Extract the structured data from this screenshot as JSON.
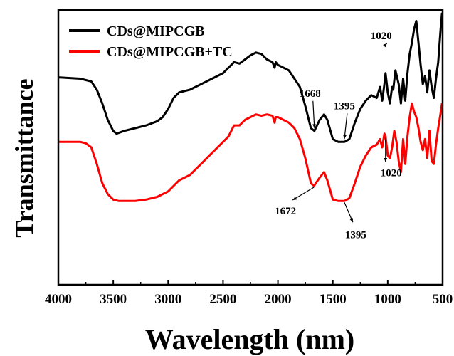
{
  "chart_data": {
    "type": "line",
    "xlabel": "Wavelength (nm)",
    "ylabel": "Transmittance",
    "xlim": [
      4000,
      500
    ],
    "ylim": [
      0,
      100
    ],
    "x_ticks": [
      "4000",
      "3500",
      "3000",
      "2500",
      "2000",
      "1500",
      "1000",
      "500"
    ],
    "x_tick_values": [
      4000,
      3500,
      3000,
      2500,
      2000,
      1500,
      1000,
      500
    ],
    "grid": false,
    "legend_position": "top-left",
    "series": [
      {
        "name": "CDs@MIPCGB",
        "color": "#000000",
        "points": [
          [
            4000,
            75.5
          ],
          [
            3800,
            75
          ],
          [
            3700,
            74
          ],
          [
            3650,
            71
          ],
          [
            3600,
            66
          ],
          [
            3550,
            60
          ],
          [
            3500,
            56
          ],
          [
            3470,
            55
          ],
          [
            3400,
            56
          ],
          [
            3300,
            57
          ],
          [
            3200,
            58
          ],
          [
            3100,
            59.5
          ],
          [
            3050,
            61
          ],
          [
            3000,
            64
          ],
          [
            2950,
            68
          ],
          [
            2900,
            70
          ],
          [
            2800,
            71
          ],
          [
            2700,
            73
          ],
          [
            2600,
            75
          ],
          [
            2500,
            77
          ],
          [
            2450,
            79
          ],
          [
            2400,
            81
          ],
          [
            2350,
            80.5
          ],
          [
            2300,
            82
          ],
          [
            2250,
            83.5
          ],
          [
            2200,
            84.5
          ],
          [
            2150,
            84
          ],
          [
            2100,
            82
          ],
          [
            2050,
            81
          ],
          [
            2030,
            79
          ],
          [
            2020,
            81
          ],
          [
            2000,
            80
          ],
          [
            1900,
            78
          ],
          [
            1800,
            72
          ],
          [
            1750,
            65
          ],
          [
            1700,
            57
          ],
          [
            1668,
            56
          ],
          [
            1620,
            60
          ],
          [
            1580,
            62
          ],
          [
            1550,
            60
          ],
          [
            1500,
            53
          ],
          [
            1450,
            52
          ],
          [
            1395,
            52
          ],
          [
            1350,
            53
          ],
          [
            1300,
            59
          ],
          [
            1250,
            64
          ],
          [
            1200,
            67
          ],
          [
            1150,
            69
          ],
          [
            1100,
            68
          ],
          [
            1070,
            72
          ],
          [
            1050,
            67
          ],
          [
            1030,
            73
          ],
          [
            1020,
            77
          ],
          [
            1000,
            70
          ],
          [
            980,
            66
          ],
          [
            960,
            72
          ],
          [
            950,
            71
          ],
          [
            930,
            78
          ],
          [
            900,
            73
          ],
          [
            880,
            66
          ],
          [
            860,
            75
          ],
          [
            840,
            67
          ],
          [
            820,
            77
          ],
          [
            800,
            84
          ],
          [
            780,
            88
          ],
          [
            760,
            93
          ],
          [
            740,
            96
          ],
          [
            720,
            88
          ],
          [
            700,
            80
          ],
          [
            680,
            73
          ],
          [
            660,
            76
          ],
          [
            640,
            70
          ],
          [
            620,
            78
          ],
          [
            600,
            72
          ],
          [
            580,
            68
          ],
          [
            560,
            75
          ],
          [
            540,
            81
          ],
          [
            520,
            92
          ],
          [
            505,
            99
          ]
        ]
      },
      {
        "name": "CDs@MIPCGB+TC",
        "color": "#ff0000",
        "points": [
          [
            4000,
            52
          ],
          [
            3800,
            52
          ],
          [
            3750,
            51.5
          ],
          [
            3700,
            50
          ],
          [
            3650,
            44
          ],
          [
            3600,
            37
          ],
          [
            3550,
            33
          ],
          [
            3500,
            31
          ],
          [
            3450,
            30.5
          ],
          [
            3400,
            30.5
          ],
          [
            3300,
            30.5
          ],
          [
            3200,
            31
          ],
          [
            3100,
            32
          ],
          [
            3050,
            33
          ],
          [
            3000,
            34
          ],
          [
            2950,
            36
          ],
          [
            2900,
            38
          ],
          [
            2800,
            40
          ],
          [
            2700,
            44
          ],
          [
            2600,
            48
          ],
          [
            2500,
            52
          ],
          [
            2450,
            54
          ],
          [
            2400,
            58
          ],
          [
            2350,
            58
          ],
          [
            2300,
            60
          ],
          [
            2250,
            61
          ],
          [
            2200,
            62
          ],
          [
            2150,
            61.5
          ],
          [
            2100,
            62
          ],
          [
            2050,
            61.5
          ],
          [
            2030,
            59
          ],
          [
            2020,
            61
          ],
          [
            2000,
            61
          ],
          [
            1900,
            59
          ],
          [
            1850,
            57
          ],
          [
            1800,
            53
          ],
          [
            1750,
            46
          ],
          [
            1700,
            37
          ],
          [
            1672,
            36
          ],
          [
            1620,
            39
          ],
          [
            1580,
            41
          ],
          [
            1550,
            38
          ],
          [
            1500,
            31
          ],
          [
            1450,
            30.5
          ],
          [
            1395,
            30.5
          ],
          [
            1350,
            31.5
          ],
          [
            1300,
            37
          ],
          [
            1250,
            43
          ],
          [
            1200,
            47
          ],
          [
            1150,
            50
          ],
          [
            1100,
            51
          ],
          [
            1070,
            53
          ],
          [
            1050,
            50
          ],
          [
            1030,
            55
          ],
          [
            1020,
            54
          ],
          [
            1000,
            47
          ],
          [
            980,
            46
          ],
          [
            960,
            50
          ],
          [
            940,
            56
          ],
          [
            920,
            52
          ],
          [
            900,
            45
          ],
          [
            880,
            41
          ],
          [
            860,
            53
          ],
          [
            840,
            44
          ],
          [
            820,
            54
          ],
          [
            800,
            61
          ],
          [
            780,
            66
          ],
          [
            760,
            63
          ],
          [
            740,
            61
          ],
          [
            720,
            57
          ],
          [
            700,
            52
          ],
          [
            680,
            49
          ],
          [
            660,
            53
          ],
          [
            640,
            46
          ],
          [
            620,
            56
          ],
          [
            600,
            45
          ],
          [
            580,
            44
          ],
          [
            560,
            51
          ],
          [
            540,
            57
          ],
          [
            520,
            62
          ],
          [
            505,
            66
          ]
        ]
      }
    ],
    "annotations": [
      {
        "text": "1668",
        "series": 0,
        "target_x": 1668,
        "target_y": 56,
        "arrow": "up"
      },
      {
        "text": "1395",
        "series": 0,
        "target_x": 1395,
        "target_y": 52,
        "arrow": "up"
      },
      {
        "text": "1020",
        "series": 0,
        "target_x": 1020,
        "target_y": 77,
        "arrow": "down"
      },
      {
        "text": "1672",
        "series": 1,
        "target_x": 1672,
        "target_y": 36,
        "arrow": "down"
      },
      {
        "text": "1395",
        "series": 1,
        "target_x": 1395,
        "target_y": 30.5,
        "arrow": "down"
      },
      {
        "text": "1020",
        "series": 1,
        "target_x": 1020,
        "target_y": 54,
        "arrow": "down"
      }
    ]
  }
}
